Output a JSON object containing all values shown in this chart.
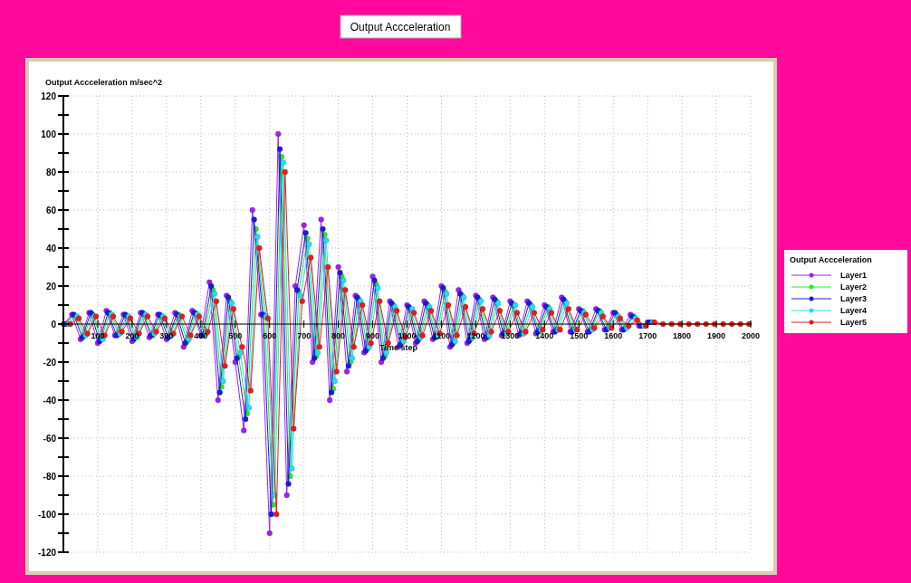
{
  "chart_data": {
    "type": "line",
    "title": "Output Accceleration",
    "ylabel": "Output Accceleration m/sec^2",
    "xlabel": "Time step",
    "legend_title": "Output Accceleration",
    "x": [
      0,
      25,
      50,
      75,
      100,
      125,
      150,
      175,
      200,
      225,
      250,
      275,
      300,
      325,
      350,
      375,
      400,
      425,
      450,
      475,
      500,
      525,
      550,
      575,
      600,
      625,
      650,
      675,
      700,
      725,
      750,
      775,
      800,
      825,
      850,
      875,
      900,
      925,
      950,
      975,
      1000,
      1025,
      1050,
      1075,
      1100,
      1125,
      1150,
      1175,
      1200,
      1225,
      1250,
      1275,
      1300,
      1325,
      1350,
      1375,
      1400,
      1425,
      1450,
      1475,
      1500,
      1525,
      1550,
      1575,
      1600,
      1625,
      1650,
      1675,
      1700
    ],
    "series": [
      {
        "name": "Layer1",
        "color": "#9b22f0",
        "values": [
          0,
          5,
          -8,
          6,
          -10,
          7,
          -6,
          5,
          -9,
          6,
          -7,
          5,
          -8,
          6,
          -12,
          7,
          -6,
          22,
          -40,
          15,
          -20,
          -56,
          60,
          5,
          -110,
          100,
          -90,
          20,
          52,
          -20,
          55,
          -40,
          30,
          -25,
          15,
          -15,
          25,
          -20,
          12,
          -12,
          10,
          -10,
          12,
          -8,
          20,
          -12,
          18,
          -10,
          15,
          -8,
          14,
          -6,
          12,
          -6,
          12,
          -5,
          10,
          -4,
          14,
          -4,
          8,
          -4,
          8,
          -3,
          6,
          -3,
          5,
          -1,
          1
        ]
      },
      {
        "name": "Layer2",
        "color": "#22ee22",
        "x": [
          10,
          35,
          60,
          85,
          110,
          135,
          160,
          185,
          210,
          235,
          260,
          285,
          310,
          335,
          360,
          385,
          410,
          435,
          460,
          485,
          510,
          535,
          560,
          585,
          610,
          635,
          660,
          685,
          710,
          735,
          760,
          785,
          810,
          835,
          860,
          885,
          910,
          935,
          960,
          985,
          1010,
          1035,
          1060,
          1085,
          1110,
          1135,
          1160,
          1185,
          1210,
          1235,
          1260,
          1285,
          1310,
          1335,
          1360,
          1385,
          1410,
          1435,
          1460,
          1485,
          1510,
          1535,
          1560,
          1585,
          1610,
          1635,
          1660,
          1685,
          1710
        ],
        "values": [
          0,
          4,
          -6,
          5,
          -8,
          6,
          -5,
          4,
          -7,
          5,
          -6,
          4,
          -6,
          5,
          -9,
          6,
          -5,
          18,
          -33,
          12,
          -17,
          -47,
          50,
          4,
          -95,
          88,
          -80,
          17,
          45,
          -17,
          47,
          -34,
          25,
          -20,
          13,
          -13,
          21,
          -17,
          10,
          -10,
          8,
          -8,
          10,
          -7,
          17,
          -10,
          15,
          -8,
          13,
          -7,
          12,
          -5,
          10,
          -5,
          10,
          -4,
          9,
          -3,
          12,
          -3,
          7,
          -3,
          7,
          -2,
          5,
          -2,
          4,
          -1,
          1
        ]
      },
      {
        "name": "Layer3",
        "color": "#1a1ae0",
        "x": [
          5,
          30,
          55,
          80,
          105,
          130,
          155,
          180,
          205,
          230,
          255,
          280,
          305,
          330,
          355,
          380,
          405,
          430,
          455,
          480,
          505,
          530,
          555,
          580,
          605,
          630,
          655,
          680,
          705,
          730,
          755,
          780,
          805,
          830,
          855,
          880,
          905,
          930,
          955,
          980,
          1005,
          1030,
          1055,
          1080,
          1105,
          1130,
          1155,
          1180,
          1205,
          1230,
          1255,
          1280,
          1305,
          1330,
          1355,
          1380,
          1405,
          1430,
          1455,
          1480,
          1505,
          1530,
          1555,
          1580,
          1605,
          1630,
          1655,
          1680,
          1705
        ],
        "values": [
          0,
          5,
          -7,
          6,
          -9,
          6,
          -6,
          5,
          -8,
          6,
          -6,
          5,
          -7,
          5,
          -10,
          6,
          -6,
          20,
          -36,
          14,
          -18,
          -50,
          55,
          5,
          -100,
          92,
          -84,
          18,
          48,
          -18,
          50,
          -36,
          27,
          -22,
          14,
          -14,
          23,
          -18,
          11,
          -11,
          9,
          -9,
          11,
          -7,
          19,
          -11,
          16,
          -9,
          14,
          -7,
          13,
          -5,
          11,
          -5,
          11,
          -4,
          9,
          -4,
          13,
          -4,
          7,
          -4,
          7,
          -3,
          6,
          -3,
          4,
          -1,
          1
        ]
      },
      {
        "name": "Layer4",
        "color": "#22e0f0",
        "x": [
          15,
          40,
          65,
          90,
          115,
          140,
          165,
          190,
          215,
          240,
          265,
          290,
          315,
          340,
          365,
          390,
          415,
          440,
          465,
          490,
          515,
          540,
          565,
          590,
          615,
          640,
          665,
          690,
          715,
          740,
          765,
          790,
          815,
          840,
          865,
          890,
          915,
          940,
          965,
          990,
          1015,
          1040,
          1065,
          1090,
          1115,
          1140,
          1165,
          1190,
          1215,
          1240,
          1265,
          1290,
          1315,
          1340,
          1365,
          1390,
          1415,
          1440,
          1465,
          1490,
          1515,
          1540,
          1565,
          1590,
          1615,
          1640,
          1665,
          1690,
          1715
        ],
        "values": [
          0,
          4,
          -6,
          4,
          -8,
          5,
          -5,
          4,
          -7,
          5,
          -5,
          4,
          -6,
          4,
          -8,
          5,
          -5,
          16,
          -30,
          11,
          -15,
          -44,
          46,
          4,
          -90,
          85,
          -76,
          15,
          42,
          -15,
          44,
          -30,
          23,
          -18,
          12,
          -12,
          19,
          -15,
          9,
          -9,
          8,
          -7,
          9,
          -6,
          16,
          -9,
          14,
          -7,
          12,
          -6,
          11,
          -5,
          10,
          -5,
          9,
          -3,
          8,
          -3,
          11,
          -3,
          6,
          -3,
          6,
          -2,
          4,
          -2,
          3,
          -1,
          1
        ]
      },
      {
        "name": "Layer5",
        "color": "#f01818",
        "x": [
          20,
          45,
          70,
          95,
          120,
          145,
          170,
          195,
          220,
          245,
          270,
          295,
          320,
          345,
          370,
          395,
          420,
          445,
          470,
          495,
          520,
          545,
          570,
          595,
          620,
          645,
          670,
          695,
          720,
          745,
          770,
          795,
          820,
          845,
          870,
          895,
          920,
          945,
          970,
          995,
          1020,
          1045,
          1070,
          1095,
          1120,
          1145,
          1170,
          1195,
          1220,
          1245,
          1270,
          1295,
          1320,
          1345,
          1370,
          1395,
          1420,
          1445,
          1470,
          1495,
          1520,
          1545,
          1570,
          1595,
          1620,
          1645,
          1670,
          1695,
          1720,
          1745,
          1770,
          1795,
          1820,
          1845,
          1870,
          1895,
          1920,
          1945,
          1970,
          1995
        ],
        "values": [
          0,
          3,
          -5,
          4,
          -6,
          4,
          -4,
          3,
          -5,
          4,
          -4,
          3,
          -5,
          4,
          -6,
          4,
          -4,
          12,
          -22,
          8,
          -12,
          -35,
          40,
          3,
          -100,
          80,
          -55,
          12,
          35,
          -12,
          30,
          -25,
          18,
          -12,
          10,
          -10,
          12,
          -10,
          7,
          -7,
          6,
          -6,
          7,
          -5,
          10,
          -6,
          9,
          -5,
          8,
          -4,
          7,
          -4,
          6,
          -4,
          6,
          -3,
          6,
          -3,
          8,
          -3,
          5,
          -2,
          4,
          -2,
          3,
          -1,
          2,
          -1,
          1,
          0,
          0,
          0,
          0,
          0,
          0,
          0,
          0,
          0,
          0,
          0
        ]
      }
    ],
    "xlim": [
      0,
      2000
    ],
    "xticks": [
      100,
      200,
      300,
      400,
      500,
      600,
      700,
      800,
      900,
      1000,
      1100,
      1200,
      1300,
      1400,
      1500,
      1600,
      1700,
      1800,
      1900,
      2000
    ],
    "ylim": [
      -120,
      120
    ],
    "yticks": [
      -120,
      {
        "value": -110,
        "label": null
      },
      -100,
      {
        "value": -90,
        "label": null
      },
      -80,
      {
        "value": -70,
        "label": null
      },
      -60,
      {
        "value": -50,
        "label": null
      },
      -40,
      {
        "value": -30,
        "label": null
      },
      -20,
      {
        "value": -10,
        "label": null
      },
      0,
      {
        "value": 10,
        "label": null
      },
      20,
      {
        "value": 30,
        "label": null
      },
      40,
      {
        "value": 50,
        "label": null
      },
      60,
      {
        "value": 70,
        "label": null
      },
      80,
      {
        "value": 90,
        "label": null
      },
      100,
      {
        "value": 110,
        "label": null
      },
      120
    ],
    "grid": true,
    "legend": "right",
    "marker": "circle",
    "line_style": "solid"
  }
}
